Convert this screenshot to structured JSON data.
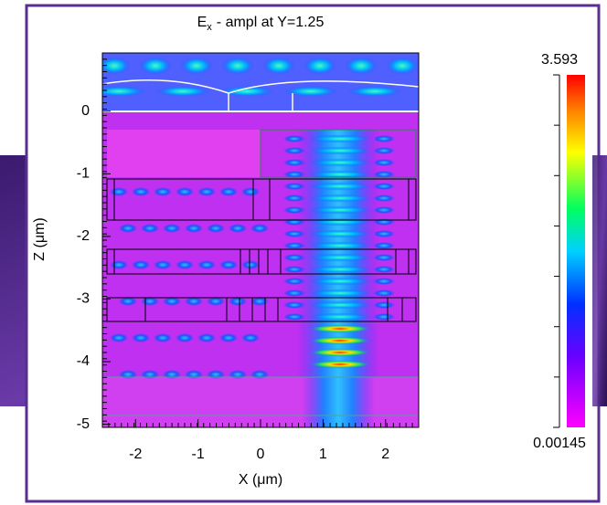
{
  "chart_data": {
    "type": "heatmap",
    "title": "E",
    "title_subscript": "x",
    "title_rest": "- ampl at Y=1.25",
    "xlabel": "X (μm)",
    "ylabel": "Z (μm)",
    "xlim": [
      -2.53,
      2.53
    ],
    "ylim": [
      -5.05,
      0.93
    ],
    "xticks": [
      -2,
      -1,
      0,
      1,
      2
    ],
    "yticks": [
      -5,
      -4,
      -3,
      -2,
      -1,
      0
    ],
    "colorbar": {
      "lim": [
        0.00145,
        3.593
      ],
      "ticks": [
        0.00145,
        3.593
      ]
    }
  }
}
